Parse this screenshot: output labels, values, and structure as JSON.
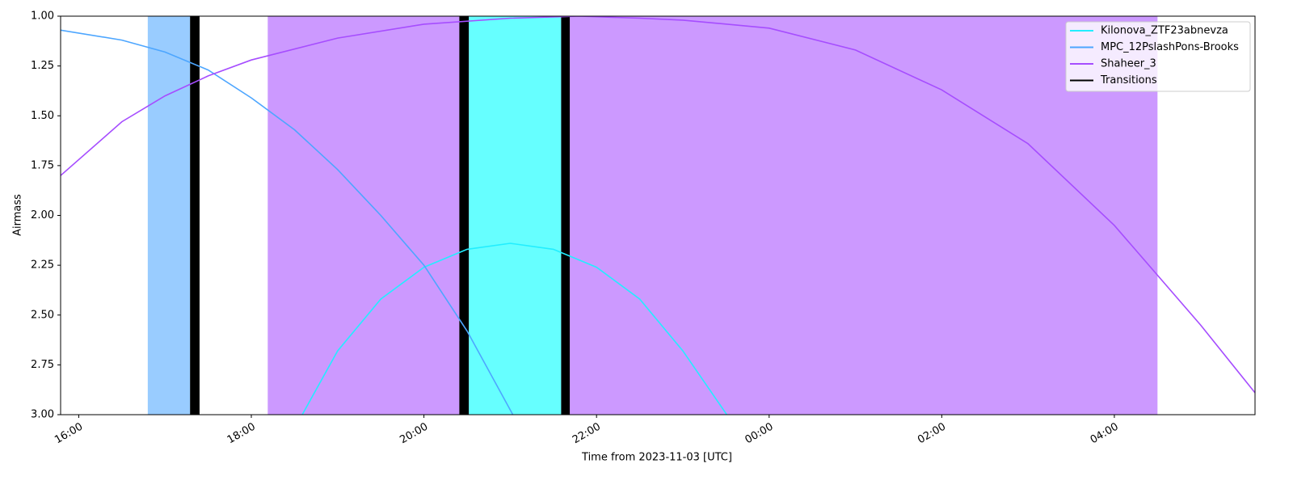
{
  "chart_data": {
    "type": "line",
    "xlabel": "Time from 2023-11-03 [UTC]",
    "ylabel": "Airmass",
    "xlim": [
      15.79,
      29.63
    ],
    "ylim": [
      3,
      1
    ],
    "xticks": [
      {
        "value": 16,
        "label": "16:00"
      },
      {
        "value": 18,
        "label": "18:00"
      },
      {
        "value": 20,
        "label": "20:00"
      },
      {
        "value": 22,
        "label": "22:00"
      },
      {
        "value": 24,
        "label": "00:00"
      },
      {
        "value": 26,
        "label": "02:00"
      },
      {
        "value": 28,
        "label": "04:00"
      }
    ],
    "yticks": [
      {
        "value": 1,
        "label": "1.00"
      },
      {
        "value": 1.25,
        "label": "1.25"
      },
      {
        "value": 1.5,
        "label": "1.50"
      },
      {
        "value": 1.75,
        "label": "1.75"
      },
      {
        "value": 2,
        "label": "2.00"
      },
      {
        "value": 2.25,
        "label": "2.25"
      },
      {
        "value": 2.5,
        "label": "2.50"
      },
      {
        "value": 2.75,
        "label": "2.75"
      },
      {
        "value": 3,
        "label": "3.00"
      }
    ],
    "windows": [
      {
        "start": 16.8,
        "end": 17.29,
        "color": "#99ccff"
      },
      {
        "start": 18.19,
        "end": 20.41,
        "color": "#cc99ff"
      },
      {
        "start": 20.52,
        "end": 21.59,
        "color": "#66ffff"
      },
      {
        "start": 21.69,
        "end": 28.5,
        "color": "#cc99ff"
      }
    ],
    "series": [
      {
        "name": "Kilonova_ZTF23abnevza",
        "color": "#22eeff",
        "x": [
          18.59,
          19.0,
          19.5,
          20.0,
          20.5,
          21.0,
          21.5,
          22.0,
          22.5,
          23.0,
          23.51
        ],
        "values": [
          3.0,
          2.68,
          2.42,
          2.26,
          2.17,
          2.14,
          2.17,
          2.26,
          2.42,
          2.68,
          3.0
        ]
      },
      {
        "name": "MPC_12PslashPons-Brooks",
        "color": "#4da6ff",
        "x": [
          15.79,
          16.5,
          17.0,
          17.5,
          18.0,
          18.5,
          19.0,
          19.5,
          20.0,
          20.5,
          21.03
        ],
        "values": [
          1.07,
          1.12,
          1.18,
          1.27,
          1.41,
          1.57,
          1.77,
          2.0,
          2.25,
          2.58,
          3.0
        ]
      },
      {
        "name": "Shaheer_3",
        "color": "#a64dff",
        "x": [
          15.79,
          16.5,
          17.0,
          17.5,
          18.0,
          19.0,
          20.0,
          21.0,
          21.8,
          22.5,
          23.0,
          24.0,
          25.0,
          26.0,
          27.0,
          28.0,
          29.0,
          29.63
        ],
        "values": [
          1.8,
          1.53,
          1.4,
          1.3,
          1.22,
          1.11,
          1.04,
          1.01,
          1.0,
          1.01,
          1.02,
          1.06,
          1.17,
          1.37,
          1.64,
          2.05,
          2.55,
          2.89
        ]
      }
    ],
    "transitions": {
      "name": "Transitions",
      "color": "#000000",
      "spans": [
        [
          17.29,
          17.4
        ],
        [
          20.41,
          20.52
        ],
        [
          21.59,
          21.69
        ]
      ]
    }
  }
}
